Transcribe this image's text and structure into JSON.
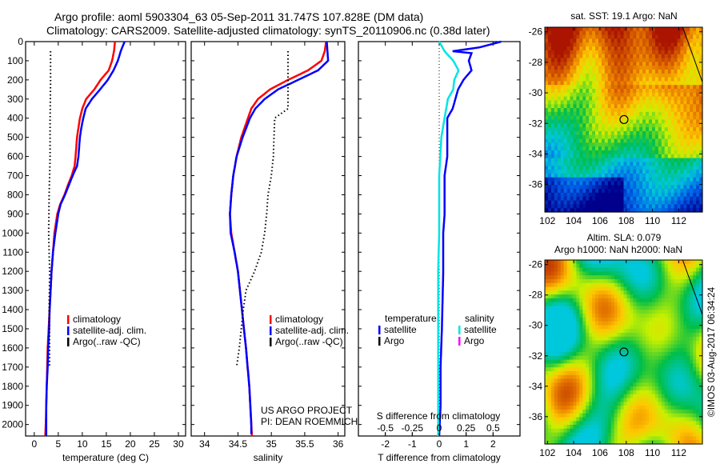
{
  "titles": {
    "line1": "Argo profile: aoml 5903304_63 05-Sep-2011 31.747S 107.828E (DM data)",
    "line2": "Climatology: CARS2009. Satellite-adjusted climatology: synTS_20110906.nc (0.38d later)"
  },
  "footer_stamp": "©IMOS 03-Aug-2017 06:34:24",
  "colors": {
    "climatology": "#ff0000",
    "satellite": "#0000ff",
    "argo": "#000000",
    "sal_satellite": "#00e5e5",
    "sal_argo": "#ff00ff"
  },
  "chart_data": [
    {
      "type": "line",
      "name": "temperature-profile",
      "xlabel": "temperature (deg C)",
      "ylabel": "",
      "xlim": [
        -1.8,
        31.5
      ],
      "ylim": [
        2060,
        0
      ],
      "xticks": [
        0,
        5,
        10,
        15,
        20,
        25,
        30
      ],
      "yticks": [
        0,
        100,
        200,
        300,
        400,
        500,
        600,
        700,
        800,
        900,
        1000,
        1100,
        1200,
        1300,
        1400,
        1500,
        1600,
        1700,
        1800,
        1900,
        2000
      ],
      "legend": [
        "climatology",
        "satellite-adj. clim.",
        "Argo(..raw -QC)"
      ],
      "series": [
        {
          "name": "climatology",
          "depth": [
            0,
            50,
            100,
            150,
            200,
            250,
            300,
            350,
            400,
            450,
            500,
            600,
            650,
            700,
            750,
            800,
            850,
            900,
            950,
            1000,
            1100,
            1200,
            1300,
            1400,
            1500,
            1600,
            1700,
            1800,
            1900,
            2000,
            2060
          ],
          "values": [
            16.8,
            16.6,
            16.2,
            15.5,
            13.8,
            12.5,
            10.8,
            10.0,
            9.5,
            9.2,
            8.9,
            8.6,
            8.4,
            7.8,
            7.0,
            6.3,
            5.4,
            4.8,
            4.5,
            4.2,
            3.9,
            3.6,
            3.4,
            3.2,
            3.0,
            2.8,
            2.7,
            2.6,
            2.5,
            2.4,
            2.3
          ]
        },
        {
          "name": "satellite-adj. clim.",
          "depth": [
            0,
            50,
            100,
            150,
            200,
            250,
            300,
            350,
            400,
            450,
            500,
            600,
            650,
            700,
            750,
            800,
            850,
            900,
            950,
            1000,
            1100,
            1200,
            1300,
            1400,
            1500,
            1600,
            1700,
            1800,
            1900,
            2000,
            2060
          ],
          "values": [
            18.8,
            18.0,
            17.4,
            16.5,
            15.3,
            13.7,
            12.0,
            10.7,
            10.2,
            9.8,
            9.5,
            9.2,
            8.9,
            8.0,
            7.2,
            6.4,
            5.5,
            5.0,
            4.7,
            4.4,
            3.9,
            3.6,
            3.4,
            3.2,
            3.1,
            2.9,
            2.8,
            2.6,
            2.5,
            2.5,
            2.5
          ]
        },
        {
          "name": "Argo(..raw -QC)",
          "depth": [
            50,
            200,
            400,
            600,
            800,
            1000,
            1200,
            1400,
            1600,
            1700
          ],
          "values": [
            3.4,
            3.4,
            3.3,
            3.3,
            3.1,
            3.0,
            3.2,
            3.1,
            3.2,
            3.2
          ]
        }
      ]
    },
    {
      "type": "line",
      "name": "salinity-profile",
      "xlabel": "salinity",
      "xlim": [
        33.8,
        36.1
      ],
      "ylim": [
        2060,
        0
      ],
      "xticks": [
        34,
        34.5,
        35,
        35.5,
        36
      ],
      "xticklabels": [
        "34",
        "34.5",
        "35",
        "35.5",
        "36"
      ],
      "legend": [
        "climatology",
        "satellite-adj. clim.",
        "Argo(..raw -QC)"
      ],
      "annotation": [
        "US ARGO PROJECT",
        "PI: DEAN ROEMMICH"
      ],
      "series": [
        {
          "name": "climatology",
          "depth": [
            0,
            50,
            100,
            150,
            200,
            250,
            300,
            350,
            400,
            500,
            600,
            700,
            800,
            900,
            1000,
            1100,
            1200,
            1400,
            1600,
            1800,
            2000,
            2060
          ],
          "values": [
            35.82,
            35.8,
            35.75,
            35.55,
            35.25,
            34.98,
            34.8,
            34.7,
            34.65,
            34.55,
            34.48,
            34.43,
            34.4,
            34.38,
            34.4,
            34.45,
            34.5,
            34.56,
            34.62,
            34.67,
            34.7,
            34.71
          ]
        },
        {
          "name": "satellite-adj. clim.",
          "depth": [
            0,
            50,
            100,
            150,
            200,
            250,
            300,
            350,
            400,
            500,
            600,
            700,
            800,
            900,
            1000,
            1100,
            1200,
            1400,
            1600,
            1800,
            2000,
            2050
          ],
          "values": [
            35.83,
            35.84,
            35.85,
            35.7,
            35.4,
            35.1,
            34.9,
            34.76,
            34.68,
            34.57,
            34.48,
            34.43,
            34.4,
            34.38,
            34.39,
            34.45,
            34.5,
            34.56,
            34.62,
            34.67,
            34.7,
            34.7
          ]
        },
        {
          "name": "Argo(..raw -QC)",
          "depth": [
            50,
            200,
            350,
            400,
            500,
            600,
            700,
            800,
            900,
            1000,
            1100,
            1200,
            1300,
            1400,
            1500,
            1600,
            1700
          ],
          "values": [
            35.25,
            35.25,
            35.25,
            35.05,
            35.04,
            35.03,
            35.0,
            34.95,
            34.93,
            34.9,
            34.85,
            34.75,
            34.62,
            34.58,
            34.55,
            34.52,
            34.48
          ]
        }
      ]
    },
    {
      "type": "line",
      "name": "difference-profile",
      "xlabel": "T difference from climatology",
      "x2label": "S difference from climatology",
      "xlim": [
        -3,
        3
      ],
      "ylim": [
        2060,
        0
      ],
      "xticks": [
        -2,
        -1,
        0,
        1,
        2
      ],
      "x2ticks": [
        -0.5,
        -0.25,
        0,
        0.25,
        0.5
      ],
      "x2ticklabels": [
        "-0.5",
        "-0.25",
        "0",
        "0.25",
        "0.5"
      ],
      "legend": {
        "temperature": [
          "satellite",
          "Argo"
        ],
        "salinity": [
          "satellite",
          "Argo"
        ],
        "temperature_title": "temperature",
        "salinity_title": "salinity"
      },
      "series": [
        {
          "name": "T satellite",
          "depth": [
            0,
            30,
            50,
            60,
            100,
            150,
            200,
            250,
            300,
            350,
            400,
            450,
            500,
            600,
            700,
            800,
            900,
            1000,
            1200,
            1500,
            1700,
            1900,
            2060
          ],
          "values": [
            2.3,
            1.5,
            0.5,
            1.2,
            1.1,
            1.2,
            0.9,
            0.7,
            0.6,
            0.5,
            0.3,
            0.3,
            0.3,
            0.3,
            0.2,
            0.2,
            0.2,
            0.15,
            0.15,
            0.1,
            0.05,
            0.05,
            0.0
          ]
        },
        {
          "name": "S satellite",
          "depth": [
            0,
            50,
            100,
            150,
            200,
            250,
            300,
            400,
            500,
            600,
            700,
            800,
            900,
            1000,
            1200,
            1500,
            1700,
            1900,
            2060
          ],
          "values": [
            0.0,
            0.05,
            0.13,
            0.18,
            0.14,
            0.13,
            0.08,
            0.05,
            0.02,
            0.01,
            0.0,
            0.0,
            0.0,
            0.0,
            -0.01,
            -0.01,
            -0.01,
            -0.01,
            -0.01
          ]
        }
      ]
    },
    {
      "type": "heatmap",
      "name": "sst-map",
      "title": "sat. SST: 19.1 Argo: NaN",
      "xticks": [
        102,
        104,
        106,
        108,
        110,
        112
      ],
      "yticks": [
        -26,
        -28,
        -30,
        -32,
        -34,
        -36
      ],
      "xlim": [
        101.8,
        113.8
      ],
      "ylim": [
        -37.8,
        -25.7
      ],
      "marker": {
        "lon": 107.828,
        "lat": -31.747
      }
    },
    {
      "type": "heatmap",
      "name": "sla-map",
      "title": "Altim. SLA: 0.079",
      "subtitle": "Argo h1000: NaN h2000: NaN",
      "xticks": [
        102,
        104,
        106,
        108,
        110,
        112
      ],
      "yticks": [
        -26,
        -28,
        -30,
        -32,
        -34,
        -36
      ],
      "xlim": [
        101.8,
        113.8
      ],
      "ylim": [
        -37.8,
        -25.7
      ],
      "marker": {
        "lon": 107.828,
        "lat": -31.747
      }
    }
  ]
}
